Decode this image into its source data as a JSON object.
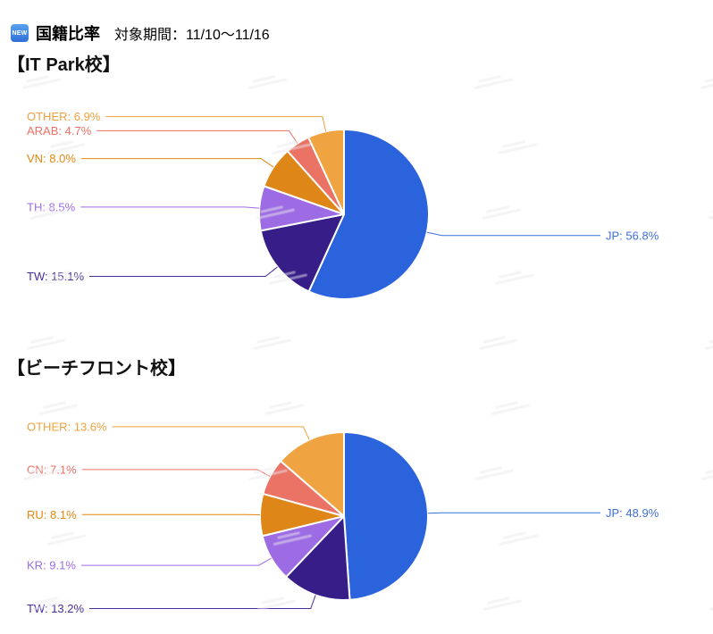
{
  "header": {
    "badge": "NEW",
    "title": "国籍比率",
    "period": "対象期間：11/10〜11/16"
  },
  "chart_data": [
    {
      "type": "pie",
      "title": "【IT Park校】",
      "start_angle_deg": 0,
      "direction": "clockwise-from-top",
      "legend_position": "leader-line-labels",
      "slices": [
        {
          "label": "JP",
          "value": 56.8,
          "display": "JP: 56.8%",
          "color": "#2b63dc",
          "label_color": "#3f6fd9",
          "side": "right"
        },
        {
          "label": "TW",
          "value": 15.1,
          "display": "TW: 15.1%",
          "color": "#371d87",
          "label_color": "#4a2d9c",
          "side": "left"
        },
        {
          "label": "TH",
          "value": 8.5,
          "display": "TH: 8.5%",
          "color": "#9d6ce4",
          "label_color": "#9d6ce4",
          "side": "left"
        },
        {
          "label": "VN",
          "value": 8.0,
          "display": "VN: 8.0%",
          "color": "#df8618",
          "label_color": "#e2870f",
          "side": "left"
        },
        {
          "label": "ARAB",
          "value": 4.7,
          "display": "ARAB: 4.7%",
          "color": "#ea7366",
          "label_color": "#ed7165",
          "side": "left"
        },
        {
          "label": "OTHER",
          "value": 6.9,
          "display": "OTHER: 6.9%",
          "color": "#f0a441",
          "label_color": "#f0a03c",
          "side": "left"
        }
      ]
    },
    {
      "type": "pie",
      "title": "【ビーチフロント校】",
      "start_angle_deg": 0,
      "direction": "clockwise-from-top",
      "legend_position": "leader-line-labels",
      "slices": [
        {
          "label": "JP",
          "value": 48.9,
          "display": "JP: 48.9%",
          "color": "#2b63dc",
          "label_color": "#3f6fd9",
          "side": "right"
        },
        {
          "label": "TW",
          "value": 13.2,
          "display": "TW: 13.2%",
          "color": "#371d87",
          "label_color": "#4a2d9c",
          "side": "left"
        },
        {
          "label": "KR",
          "value": 9.1,
          "display": "KR: 9.1%",
          "color": "#9d6ce4",
          "label_color": "#9d6ce4",
          "side": "left"
        },
        {
          "label": "RU",
          "value": 8.1,
          "display": "RU: 8.1%",
          "color": "#df8618",
          "label_color": "#e2870f",
          "side": "left"
        },
        {
          "label": "CN",
          "value": 7.1,
          "display": "CN: 7.1%",
          "color": "#ea7366",
          "label_color": "#ed7165",
          "side": "left"
        },
        {
          "label": "OTHER",
          "value": 13.6,
          "display": "OTHER: 13.6%",
          "color": "#f0a441",
          "label_color": "#f0a03c",
          "side": "left"
        }
      ]
    }
  ],
  "colors": {
    "background": "#ffffff",
    "badge_blue": "#3b82d8",
    "slice_stroke": "#ffffff"
  }
}
